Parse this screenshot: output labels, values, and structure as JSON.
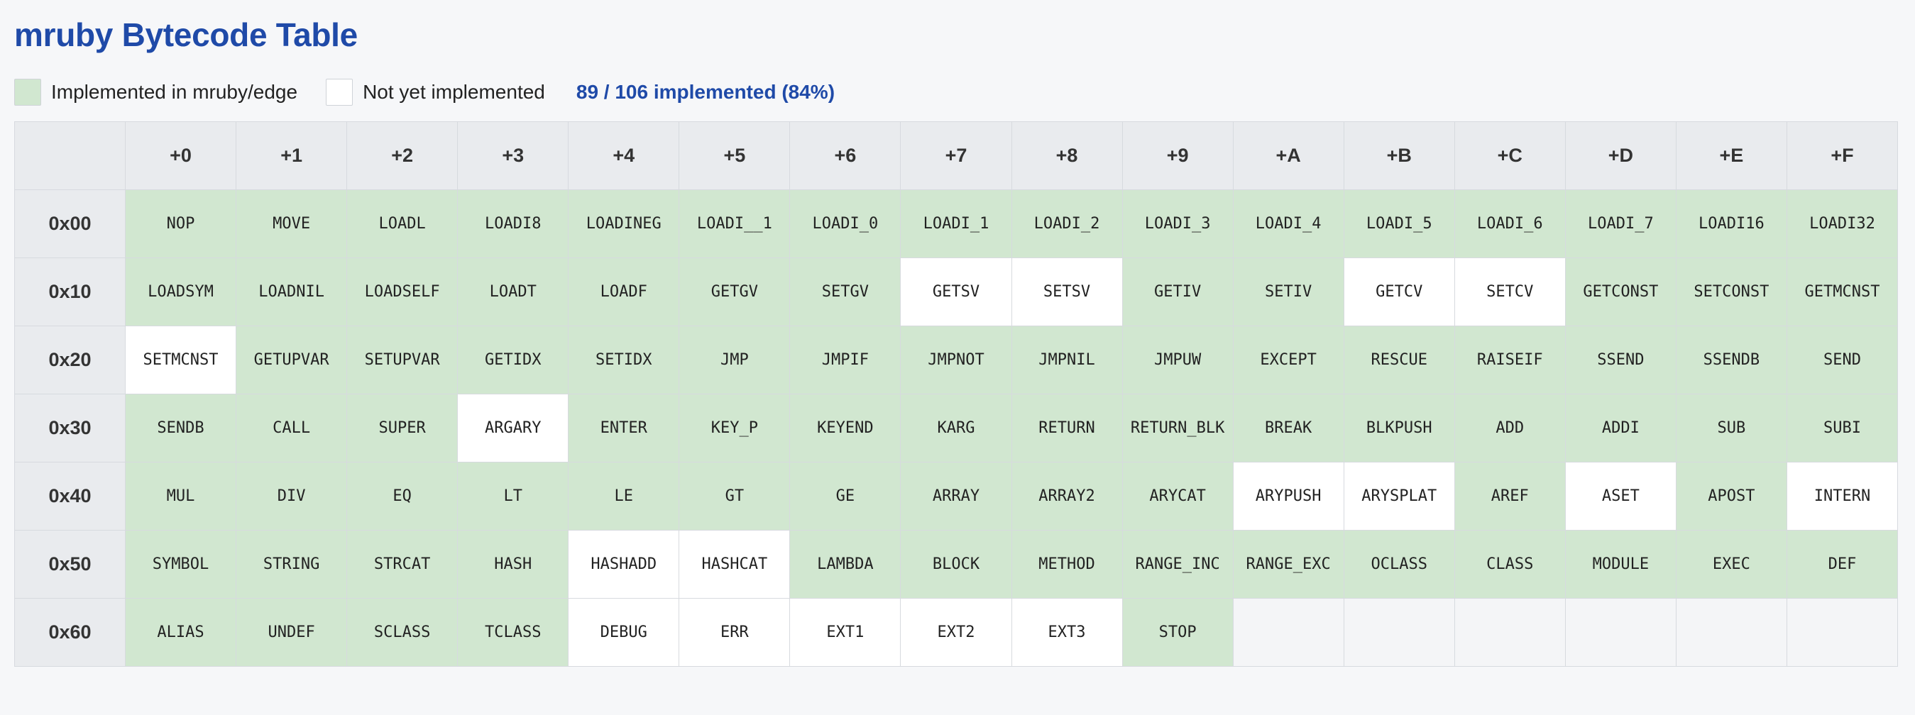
{
  "title": "mruby Bytecode Table",
  "legend": {
    "implemented_label": "Implemented in mruby/edge",
    "not_implemented_label": "Not yet implemented",
    "stats": "89 / 106 implemented (84%)"
  },
  "colors": {
    "implemented": "#d1e7d0",
    "not_implemented": "#ffffff",
    "title": "#1f4aa8"
  },
  "columns": [
    "+0",
    "+1",
    "+2",
    "+3",
    "+4",
    "+5",
    "+6",
    "+7",
    "+8",
    "+9",
    "+A",
    "+B",
    "+C",
    "+D",
    "+E",
    "+F"
  ],
  "rows": [
    {
      "label": "0x00",
      "cells": [
        {
          "op": "NOP",
          "impl": true
        },
        {
          "op": "MOVE",
          "impl": true
        },
        {
          "op": "LOADL",
          "impl": true
        },
        {
          "op": "LOADI8",
          "impl": true
        },
        {
          "op": "LOADINEG",
          "impl": true
        },
        {
          "op": "LOADI__1",
          "impl": true
        },
        {
          "op": "LOADI_0",
          "impl": true
        },
        {
          "op": "LOADI_1",
          "impl": true
        },
        {
          "op": "LOADI_2",
          "impl": true
        },
        {
          "op": "LOADI_3",
          "impl": true
        },
        {
          "op": "LOADI_4",
          "impl": true
        },
        {
          "op": "LOADI_5",
          "impl": true
        },
        {
          "op": "LOADI_6",
          "impl": true
        },
        {
          "op": "LOADI_7",
          "impl": true
        },
        {
          "op": "LOADI16",
          "impl": true
        },
        {
          "op": "LOADI32",
          "impl": true
        }
      ]
    },
    {
      "label": "0x10",
      "cells": [
        {
          "op": "LOADSYM",
          "impl": true
        },
        {
          "op": "LOADNIL",
          "impl": true
        },
        {
          "op": "LOADSELF",
          "impl": true
        },
        {
          "op": "LOADT",
          "impl": true
        },
        {
          "op": "LOADF",
          "impl": true
        },
        {
          "op": "GETGV",
          "impl": true
        },
        {
          "op": "SETGV",
          "impl": true
        },
        {
          "op": "GETSV",
          "impl": false
        },
        {
          "op": "SETSV",
          "impl": false
        },
        {
          "op": "GETIV",
          "impl": true
        },
        {
          "op": "SETIV",
          "impl": true
        },
        {
          "op": "GETCV",
          "impl": false
        },
        {
          "op": "SETCV",
          "impl": false
        },
        {
          "op": "GETCONST",
          "impl": true
        },
        {
          "op": "SETCONST",
          "impl": true
        },
        {
          "op": "GETMCNST",
          "impl": true
        }
      ]
    },
    {
      "label": "0x20",
      "cells": [
        {
          "op": "SETMCNST",
          "impl": false
        },
        {
          "op": "GETUPVAR",
          "impl": true
        },
        {
          "op": "SETUPVAR",
          "impl": true
        },
        {
          "op": "GETIDX",
          "impl": true
        },
        {
          "op": "SETIDX",
          "impl": true
        },
        {
          "op": "JMP",
          "impl": true
        },
        {
          "op": "JMPIF",
          "impl": true
        },
        {
          "op": "JMPNOT",
          "impl": true
        },
        {
          "op": "JMPNIL",
          "impl": true
        },
        {
          "op": "JMPUW",
          "impl": true
        },
        {
          "op": "EXCEPT",
          "impl": true
        },
        {
          "op": "RESCUE",
          "impl": true
        },
        {
          "op": "RAISEIF",
          "impl": true
        },
        {
          "op": "SSEND",
          "impl": true
        },
        {
          "op": "SSENDB",
          "impl": true
        },
        {
          "op": "SEND",
          "impl": true
        }
      ]
    },
    {
      "label": "0x30",
      "cells": [
        {
          "op": "SENDB",
          "impl": true
        },
        {
          "op": "CALL",
          "impl": true
        },
        {
          "op": "SUPER",
          "impl": true
        },
        {
          "op": "ARGARY",
          "impl": false
        },
        {
          "op": "ENTER",
          "impl": true
        },
        {
          "op": "KEY_P",
          "impl": true
        },
        {
          "op": "KEYEND",
          "impl": true
        },
        {
          "op": "KARG",
          "impl": true
        },
        {
          "op": "RETURN",
          "impl": true
        },
        {
          "op": "RETURN_BLK",
          "impl": true
        },
        {
          "op": "BREAK",
          "impl": true
        },
        {
          "op": "BLKPUSH",
          "impl": true
        },
        {
          "op": "ADD",
          "impl": true
        },
        {
          "op": "ADDI",
          "impl": true
        },
        {
          "op": "SUB",
          "impl": true
        },
        {
          "op": "SUBI",
          "impl": true
        }
      ]
    },
    {
      "label": "0x40",
      "cells": [
        {
          "op": "MUL",
          "impl": true
        },
        {
          "op": "DIV",
          "impl": true
        },
        {
          "op": "EQ",
          "impl": true
        },
        {
          "op": "LT",
          "impl": true
        },
        {
          "op": "LE",
          "impl": true
        },
        {
          "op": "GT",
          "impl": true
        },
        {
          "op": "GE",
          "impl": true
        },
        {
          "op": "ARRAY",
          "impl": true
        },
        {
          "op": "ARRAY2",
          "impl": true
        },
        {
          "op": "ARYCAT",
          "impl": true
        },
        {
          "op": "ARYPUSH",
          "impl": false
        },
        {
          "op": "ARYSPLAT",
          "impl": false
        },
        {
          "op": "AREF",
          "impl": true
        },
        {
          "op": "ASET",
          "impl": false
        },
        {
          "op": "APOST",
          "impl": true
        },
        {
          "op": "INTERN",
          "impl": false
        }
      ]
    },
    {
      "label": "0x50",
      "cells": [
        {
          "op": "SYMBOL",
          "impl": true
        },
        {
          "op": "STRING",
          "impl": true
        },
        {
          "op": "STRCAT",
          "impl": true
        },
        {
          "op": "HASH",
          "impl": true
        },
        {
          "op": "HASHADD",
          "impl": false
        },
        {
          "op": "HASHCAT",
          "impl": false
        },
        {
          "op": "LAMBDA",
          "impl": true
        },
        {
          "op": "BLOCK",
          "impl": true
        },
        {
          "op": "METHOD",
          "impl": true
        },
        {
          "op": "RANGE_INC",
          "impl": true
        },
        {
          "op": "RANGE_EXC",
          "impl": true
        },
        {
          "op": "OCLASS",
          "impl": true
        },
        {
          "op": "CLASS",
          "impl": true
        },
        {
          "op": "MODULE",
          "impl": true
        },
        {
          "op": "EXEC",
          "impl": true
        },
        {
          "op": "DEF",
          "impl": true
        }
      ]
    },
    {
      "label": "0x60",
      "cells": [
        {
          "op": "ALIAS",
          "impl": true
        },
        {
          "op": "UNDEF",
          "impl": true
        },
        {
          "op": "SCLASS",
          "impl": true
        },
        {
          "op": "TCLASS",
          "impl": true
        },
        {
          "op": "DEBUG",
          "impl": false
        },
        {
          "op": "ERR",
          "impl": false
        },
        {
          "op": "EXT1",
          "impl": false
        },
        {
          "op": "EXT2",
          "impl": false
        },
        {
          "op": "EXT3",
          "impl": false
        },
        {
          "op": "STOP",
          "impl": true
        },
        {
          "op": "",
          "impl": null
        },
        {
          "op": "",
          "impl": null
        },
        {
          "op": "",
          "impl": null
        },
        {
          "op": "",
          "impl": null
        },
        {
          "op": "",
          "impl": null
        },
        {
          "op": "",
          "impl": null
        }
      ]
    }
  ]
}
